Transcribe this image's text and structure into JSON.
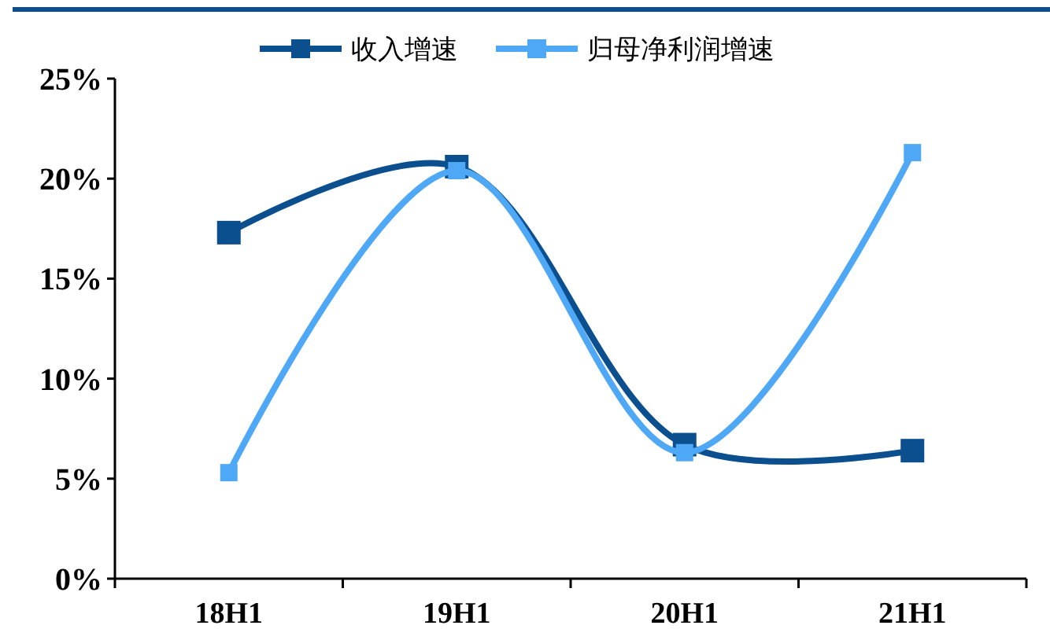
{
  "chart_data": {
    "type": "line",
    "categories": [
      "18H1",
      "19H1",
      "20H1",
      "21H1"
    ],
    "series": [
      {
        "name": "收入增速",
        "color": "#0b4f8f",
        "values": [
          17.3,
          20.6,
          6.7,
          6.4
        ]
      },
      {
        "name": "归母净利润增速",
        "color": "#4ea8f5",
        "values": [
          5.3,
          20.4,
          6.3,
          21.3
        ]
      }
    ],
    "ylim": [
      0,
      25
    ],
    "yticks": [
      {
        "value": 0,
        "label": "0%"
      },
      {
        "value": 5,
        "label": "5%"
      },
      {
        "value": 10,
        "label": "10%"
      },
      {
        "value": 15,
        "label": "15%"
      },
      {
        "value": 20,
        "label": "20%"
      },
      {
        "value": 25,
        "label": "25%"
      }
    ],
    "grid": false,
    "legend": "top",
    "marker": "square",
    "line_style": "solid"
  }
}
